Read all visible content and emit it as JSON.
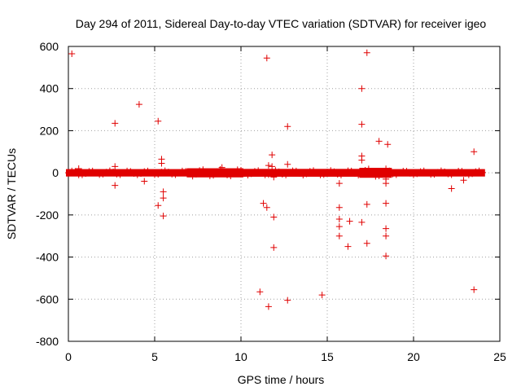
{
  "chart_data": {
    "type": "scatter",
    "title": "Day 294 of 2011, Sidereal Day-to-day VTEC variation (SDTVAR) for receiver igeo",
    "xlabel": "GPS time / hours",
    "ylabel": "SDTVAR / TECUs",
    "xlim": [
      0,
      25
    ],
    "ylim": [
      -800,
      600
    ],
    "xticks": [
      0,
      5,
      10,
      15,
      20,
      25
    ],
    "yticks": [
      -800,
      -600,
      -400,
      -200,
      0,
      200,
      400,
      600
    ],
    "grid": true,
    "marker": "+",
    "series": [
      {
        "name": "SDTVAR",
        "color": "#e00000",
        "dense_band": {
          "x_start": 0,
          "x_end": 24,
          "step": 0.02,
          "center": 0,
          "half_width": 6,
          "segments": [
            {
              "x_start": 0,
              "x_end": 7,
              "half_width": 6
            },
            {
              "x_start": 7,
              "x_end": 10,
              "half_width": 10
            },
            {
              "x_start": 10,
              "x_end": 17,
              "half_width": 7
            },
            {
              "x_start": 17,
              "x_end": 18.6,
              "half_width": 12
            },
            {
              "x_start": 18.6,
              "x_end": 24,
              "half_width": 6
            }
          ]
        },
        "points": [
          [
            0.2,
            565
          ],
          [
            0.6,
            20
          ],
          [
            0.6,
            -10
          ],
          [
            2.7,
            235
          ],
          [
            2.7,
            30
          ],
          [
            2.7,
            -60
          ],
          [
            4.1,
            325
          ],
          [
            4.4,
            -40
          ],
          [
            5.2,
            245
          ],
          [
            5.2,
            -155
          ],
          [
            5.4,
            65
          ],
          [
            5.4,
            45
          ],
          [
            5.5,
            -90
          ],
          [
            5.5,
            -120
          ],
          [
            5.5,
            -205
          ],
          [
            8.9,
            25
          ],
          [
            11.1,
            -565
          ],
          [
            11.3,
            -145
          ],
          [
            11.5,
            545
          ],
          [
            11.5,
            -165
          ],
          [
            11.6,
            -635
          ],
          [
            11.6,
            35
          ],
          [
            11.8,
            85
          ],
          [
            11.8,
            30
          ],
          [
            11.9,
            -210
          ],
          [
            11.9,
            -355
          ],
          [
            11.9,
            -20
          ],
          [
            12.7,
            220
          ],
          [
            12.7,
            40
          ],
          [
            12.7,
            -605
          ],
          [
            14.7,
            -580
          ],
          [
            15.7,
            -50
          ],
          [
            15.7,
            -165
          ],
          [
            15.7,
            -220
          ],
          [
            15.7,
            -255
          ],
          [
            15.7,
            -300
          ],
          [
            16.2,
            -350
          ],
          [
            16.3,
            -230
          ],
          [
            17.0,
            400
          ],
          [
            17.0,
            230
          ],
          [
            17.0,
            80
          ],
          [
            17.0,
            60
          ],
          [
            17.0,
            -235
          ],
          [
            17.3,
            570
          ],
          [
            17.3,
            -150
          ],
          [
            17.3,
            -335
          ],
          [
            18.0,
            150
          ],
          [
            18.4,
            -30
          ],
          [
            18.4,
            -50
          ],
          [
            18.4,
            -145
          ],
          [
            18.4,
            -265
          ],
          [
            18.4,
            -300
          ],
          [
            18.4,
            -395
          ],
          [
            18.5,
            135
          ],
          [
            22.2,
            -75
          ],
          [
            22.9,
            -35
          ],
          [
            23.5,
            100
          ],
          [
            23.5,
            -555
          ]
        ]
      }
    ]
  }
}
